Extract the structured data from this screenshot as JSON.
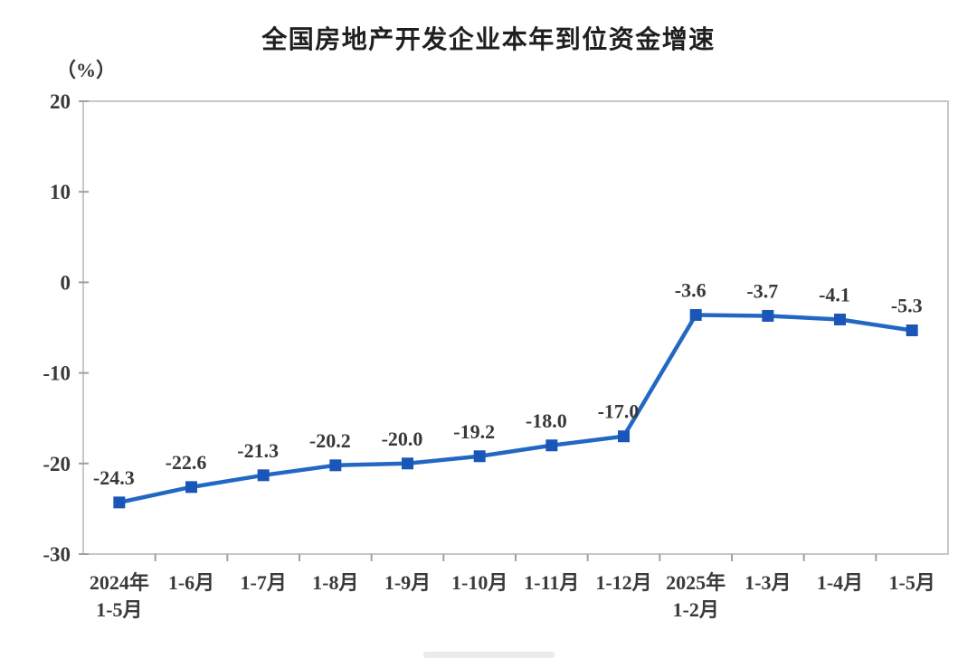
{
  "chart_data": {
    "type": "line",
    "title": "全国房地产开发企业本年到位资金增速",
    "unit_label": "（%）",
    "categories": [
      "2024年\n1-5月",
      "1-6月",
      "1-7月",
      "1-8月",
      "1-9月",
      "1-10月",
      "1-11月",
      "1-12月",
      "2025年\n1-2月",
      "1-3月",
      "1-4月",
      "1-5月"
    ],
    "values": [
      -24.3,
      -22.6,
      -21.3,
      -20.2,
      -20.0,
      -19.2,
      -18.0,
      -17.0,
      -3.6,
      -3.7,
      -4.1,
      -5.3
    ],
    "data_labels": [
      "-24.3",
      "-22.6",
      "-21.3",
      "-20.2",
      "-20.0",
      "-19.2",
      "-18.0",
      "-17.0",
      "-3.6",
      "-3.7",
      "-4.1",
      "-5.3"
    ],
    "ylim": [
      -30,
      20
    ],
    "yticks": [
      20,
      10,
      0,
      -10,
      -20,
      -30
    ],
    "grid": false,
    "legend": "none",
    "colors": {
      "line": "#2268C3",
      "marker": "#1A56B8",
      "plot_border": "#c8c8c8",
      "tick": "#a0a0a0",
      "axis_text": "#3a3a3a",
      "data_label_text": "#383838",
      "title_text": "#1f1f1f",
      "background": "#ffffff"
    }
  }
}
